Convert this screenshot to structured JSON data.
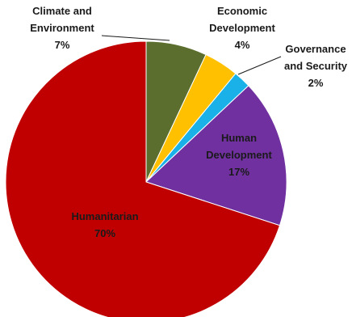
{
  "chart_data": {
    "type": "pie",
    "title": "",
    "slices": [
      {
        "label_lines": [
          "Climate and",
          "Environment"
        ],
        "value": 7,
        "percent_label": "7%",
        "color": "#5b6e2d"
      },
      {
        "label_lines": [
          "Economic",
          "Development"
        ],
        "value": 4,
        "percent_label": "4%",
        "color": "#ffc000"
      },
      {
        "label_lines": [
          "Governance",
          "and Security"
        ],
        "value": 2,
        "percent_label": "2%",
        "color": "#1ab0e8"
      },
      {
        "label_lines": [
          "Human",
          "Development"
        ],
        "value": 17,
        "percent_label": "17%",
        "color": "#7030a0"
      },
      {
        "label_lines": [
          "Humanitarian"
        ],
        "value": 70,
        "percent_label": "70%",
        "color": "#c00000"
      }
    ],
    "start_angle_deg": 0,
    "direction": "clockwise",
    "legend": "none",
    "label_style": "category name and percent"
  }
}
